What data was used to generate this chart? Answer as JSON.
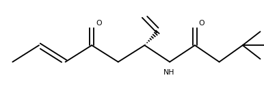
{
  "bg": "#ffffff",
  "lc": "#000000",
  "lw": 1.35,
  "figsize": [
    3.86,
    1.36
  ],
  "dpi": 100,
  "xlim": [
    0,
    10.5
  ],
  "ylim": [
    0,
    3.8
  ]
}
